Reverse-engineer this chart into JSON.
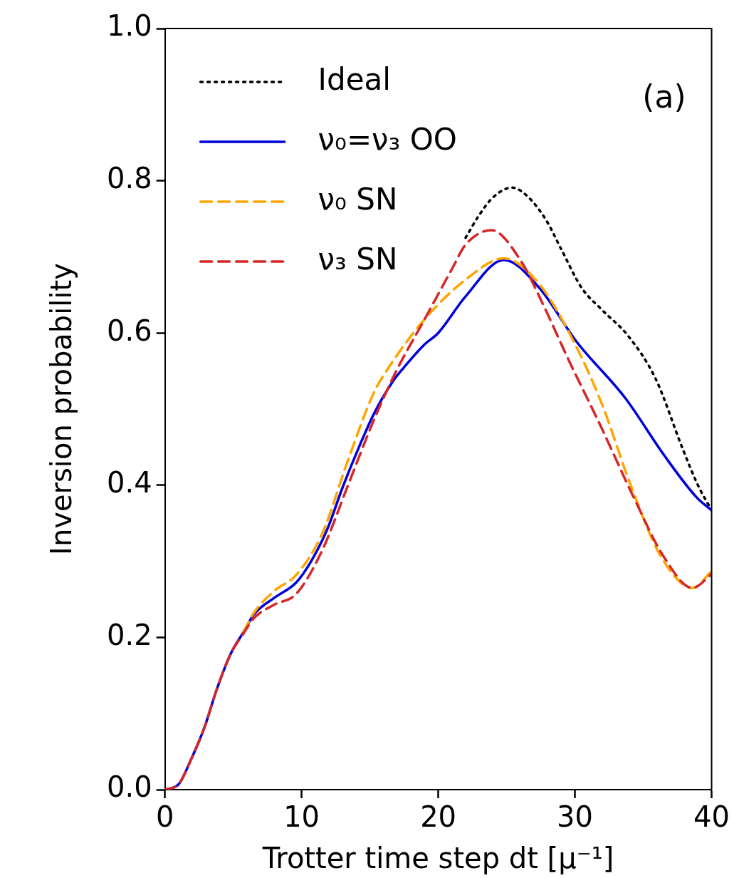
{
  "chart_data": {
    "type": "line",
    "xlabel": "Trotter time step dt [μ⁻¹]",
    "ylabel": "Inversion probability",
    "annotations": [
      "(a)"
    ],
    "xlim": [
      0,
      40
    ],
    "xticks": [
      0,
      10,
      20,
      30,
      40
    ],
    "ylim": [
      0,
      1
    ],
    "yticks": [
      {
        "value": 0,
        "label": "0.0"
      },
      {
        "value": 0.2,
        "label": "0.2"
      },
      {
        "value": 0.4,
        "label": "0.4"
      },
      {
        "value": 0.6,
        "label": "0.6"
      },
      {
        "value": 0.8,
        "label": "0.8"
      },
      {
        "value": 1,
        "label": "1.0"
      }
    ],
    "grid": false,
    "legend": "top left",
    "marker": "none",
    "series": [
      {
        "name": "Ideal",
        "color": "#000000",
        "line_style": "dotted",
        "x": [
          22,
          23,
          24,
          25.4,
          26.5,
          27.9,
          29,
          30.5,
          32,
          33.9,
          35.9,
          37.9,
          39,
          40
        ],
        "values": [
          0.725,
          0.755,
          0.778,
          0.791,
          0.78,
          0.748,
          0.71,
          0.659,
          0.63,
          0.596,
          0.54,
          0.447,
          0.4,
          0.367
        ]
      },
      {
        "name": "ν₀=ν₃ OO",
        "color": "#0000dd",
        "line_style": "solid",
        "x": [
          0,
          1,
          1.9,
          2.9,
          3.8,
          4.8,
          5.75,
          6.5,
          8,
          9.6,
          10.7,
          11.9,
          13,
          14.2,
          15.3,
          16.7,
          17.5,
          19,
          20,
          22,
          24.8,
          27.4,
          30.1,
          33.7,
          36.5,
          38.9,
          40
        ],
        "values": [
          0,
          0.007,
          0.039,
          0.082,
          0.132,
          0.178,
          0.207,
          0.23,
          0.252,
          0.272,
          0.3,
          0.343,
          0.397,
          0.45,
          0.494,
          0.537,
          0.555,
          0.585,
          0.6,
          0.648,
          0.696,
          0.659,
          0.589,
          0.514,
          0.44,
          0.384,
          0.367
        ]
      },
      {
        "name": "ν₀ SN",
        "color": "#ffa500",
        "line_style": "dashed",
        "x": [
          5.75,
          6.5,
          8,
          9.6,
          11.5,
          13.4,
          15.3,
          16.5,
          19,
          22,
          24.8,
          27.4,
          29.7,
          31.9,
          34.1,
          36.3,
          38.6,
          40
        ],
        "values": [
          0.207,
          0.232,
          0.261,
          0.282,
          0.336,
          0.433,
          0.522,
          0.558,
          0.618,
          0.67,
          0.698,
          0.664,
          0.596,
          0.51,
          0.399,
          0.306,
          0.265,
          0.287
        ]
      },
      {
        "name": "ν₃ SN",
        "color": "#d62728",
        "line_style": "dashed",
        "x": [
          0,
          1,
          1.9,
          2.9,
          3.8,
          4.8,
          5.75,
          6.5,
          8,
          9.6,
          11.5,
          13.4,
          15.3,
          16.9,
          19,
          21,
          22,
          23.9,
          26,
          27.6,
          29.5,
          31.9,
          34.3,
          36.5,
          38.6,
          40
        ],
        "values": [
          0,
          0.007,
          0.039,
          0.082,
          0.132,
          0.178,
          0.205,
          0.225,
          0.243,
          0.257,
          0.314,
          0.4,
          0.486,
          0.549,
          0.618,
          0.684,
          0.716,
          0.735,
          0.696,
          0.64,
          0.566,
          0.477,
          0.384,
          0.306,
          0.265,
          0.283
        ]
      }
    ]
  }
}
